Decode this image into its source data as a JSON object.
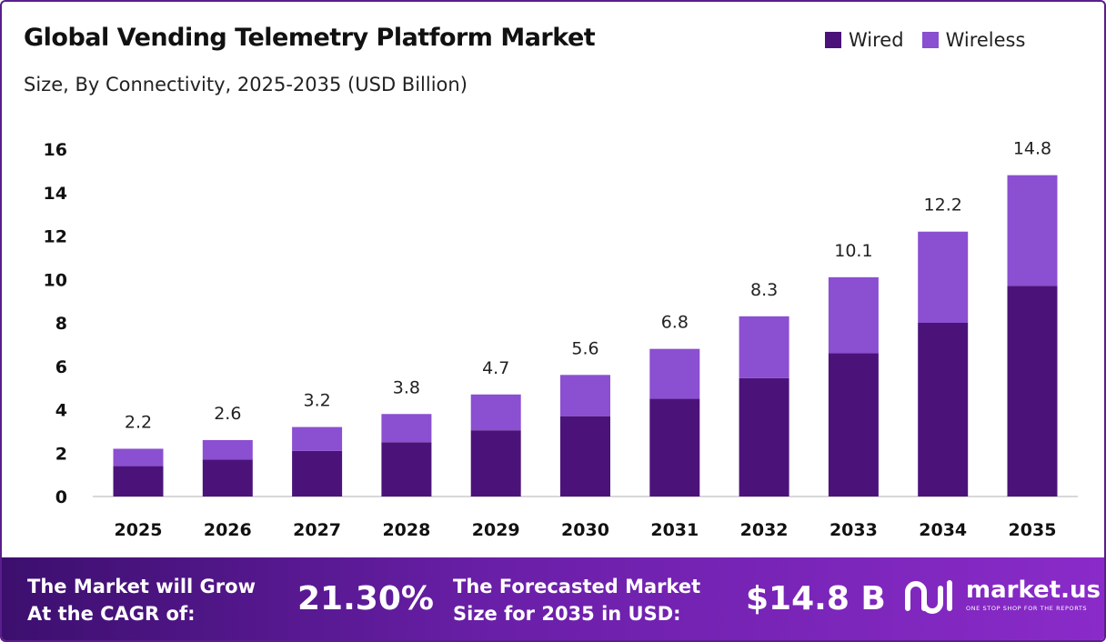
{
  "header": {
    "title": "Global Vending Telemetry Platform Market",
    "subtitle": "Size, By Connectivity, 2025-2035 (USD Billion)"
  },
  "legend": [
    {
      "label": "Wired",
      "color": "#4b137a"
    },
    {
      "label": "Wireless",
      "color": "#8b4fd1"
    }
  ],
  "chart_data": {
    "type": "bar",
    "stacked": true,
    "categories": [
      "2025",
      "2026",
      "2027",
      "2028",
      "2029",
      "2030",
      "2031",
      "2032",
      "2033",
      "2034",
      "2035"
    ],
    "series": [
      {
        "name": "Wired",
        "color": "#4b137a",
        "values": [
          1.4,
          1.7,
          2.1,
          2.5,
          3.05,
          3.7,
          4.5,
          5.45,
          6.6,
          8.0,
          9.7
        ]
      },
      {
        "name": "Wireless",
        "color": "#8b4fd1",
        "values": [
          0.8,
          0.9,
          1.1,
          1.3,
          1.65,
          1.9,
          2.3,
          2.85,
          3.5,
          4.2,
          5.1
        ]
      }
    ],
    "totals": [
      "2.2",
      "2.6",
      "3.2",
      "3.8",
      "4.7",
      "5.6",
      "6.8",
      "8.3",
      "10.1",
      "12.2",
      "14.8"
    ],
    "yticks": [
      0,
      2,
      4,
      6,
      8,
      10,
      12,
      14,
      16
    ],
    "ylim": [
      0,
      16
    ],
    "grid": false,
    "legend_position": "top-right"
  },
  "banner": {
    "cagr_text_line1": "The Market will Grow",
    "cagr_text_line2": "At the CAGR of:",
    "cagr_value": "21.30%",
    "forecast_text_line1": "The Forecasted Market",
    "forecast_text_line2": "Size for 2035 in USD:",
    "forecast_value": "$14.8 B",
    "logo_name": "market.us",
    "logo_tagline": "ONE STOP SHOP FOR THE REPORTS"
  }
}
